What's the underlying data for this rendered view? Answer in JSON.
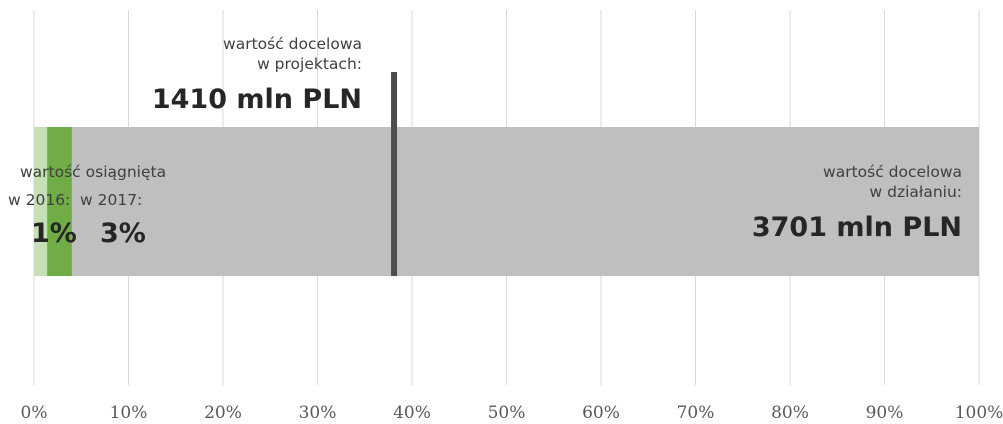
{
  "chart_data": {
    "type": "bar",
    "orientation": "horizontal",
    "xlim": [
      0,
      100
    ],
    "x_ticks": [
      0,
      10,
      20,
      30,
      40,
      50,
      60,
      70,
      80,
      90,
      100
    ],
    "tick_labels": [
      "0%",
      "10%",
      "20%",
      "30%",
      "40%",
      "50%",
      "60%",
      "70%",
      "80%",
      "90%",
      "100%"
    ],
    "grid": "vertical",
    "total": {
      "value": 100,
      "label_line1": "wartość docelowa",
      "label_line2": "w działaniu:",
      "value_label": "3701 mln PLN",
      "color": "#bfbfbf"
    },
    "achieved_2016": {
      "value": 1.4,
      "value_label": "1%",
      "color": "#c5e0b4"
    },
    "achieved_2017": {
      "value": 4,
      "value_label": "3%",
      "color": "#70ad47"
    },
    "achieved_label": {
      "prefix": "warto",
      "suffix": "ść osiągnięta",
      "year_2016": "w 2016:",
      "year_2017": "w 2017:"
    },
    "project_target": {
      "value": 38.1,
      "label_line1": "wartość docelowa",
      "label_line2": "w projektach:",
      "value_label": "1410 mln PLN",
      "color": "#4d4d4d"
    },
    "grid_color": "#d9d9d9"
  }
}
